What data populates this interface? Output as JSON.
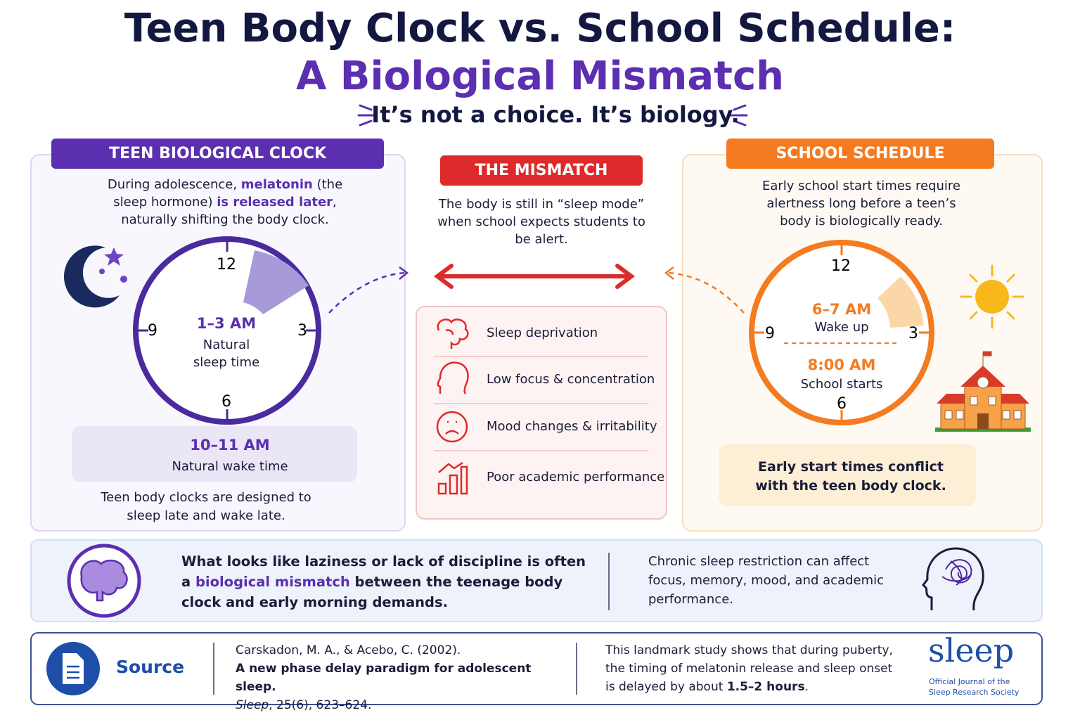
{
  "header": {
    "title_line1": "Teen Body Clock vs. School Schedule:",
    "title_line2": "A Biological Mismatch",
    "tagline": "It’s not a choice. It’s biology."
  },
  "left_panel": {
    "heading": "TEEN BIOLOGICAL CLOCK",
    "intro": [
      "During adolescence, ",
      "melatonin",
      " (the sleep hormone) ",
      "is released later",
      ", naturally shifting the body clock."
    ],
    "clock": {
      "numbers": [
        "12",
        "3",
        "6",
        "9"
      ],
      "time": "1–3 AM",
      "caption": "Natural sleep time"
    },
    "wake": {
      "time": "10–11 AM",
      "label": "Natural wake time"
    },
    "footer": "Teen body clocks are designed to sleep late and wake late."
  },
  "middle_panel": {
    "heading": "THE MISMATCH",
    "intro": "The body is still in “sleep mode” when school expects students to be alert.",
    "effects": [
      "Sleep deprivation",
      "Low focus & concentration",
      "Mood changes & irritability",
      "Poor academic performance"
    ]
  },
  "right_panel": {
    "heading": "SCHOOL SCHEDULE",
    "intro": "Early school start times require alertness long before a teen’s body is biologically ready.",
    "clock": {
      "numbers": [
        "12",
        "3",
        "6",
        "9"
      ],
      "wake_time": "6–7 AM",
      "wake_label": "Wake up",
      "school_time": "8:00 AM",
      "school_label": "School starts"
    },
    "footer": "Early start times conflict with the teen body clock."
  },
  "insight": {
    "main": [
      "What looks like laziness or lack of discipline is often a ",
      "biological mismatch",
      " between the teenage body clock and early morning demands."
    ],
    "side": "Chronic sleep restriction can affect focus, memory, mood, and academic performance."
  },
  "source": {
    "label": "Source",
    "citation": {
      "authors": "Carskadon, M. A., & Acebo, C. (2002).",
      "title": "A new phase delay paradigm for adolescent sleep.",
      "journal": "Sleep",
      "details": ", 25(6), 623–624."
    },
    "summary": [
      "This landmark study shows that during puberty, the timing of melatonin release and sleep onset is delayed by about ",
      "1.5–2 hours",
      "."
    ],
    "journal_logo": {
      "name": "sleep",
      "tagline": "Official Journal of the Sleep Research Society"
    }
  }
}
